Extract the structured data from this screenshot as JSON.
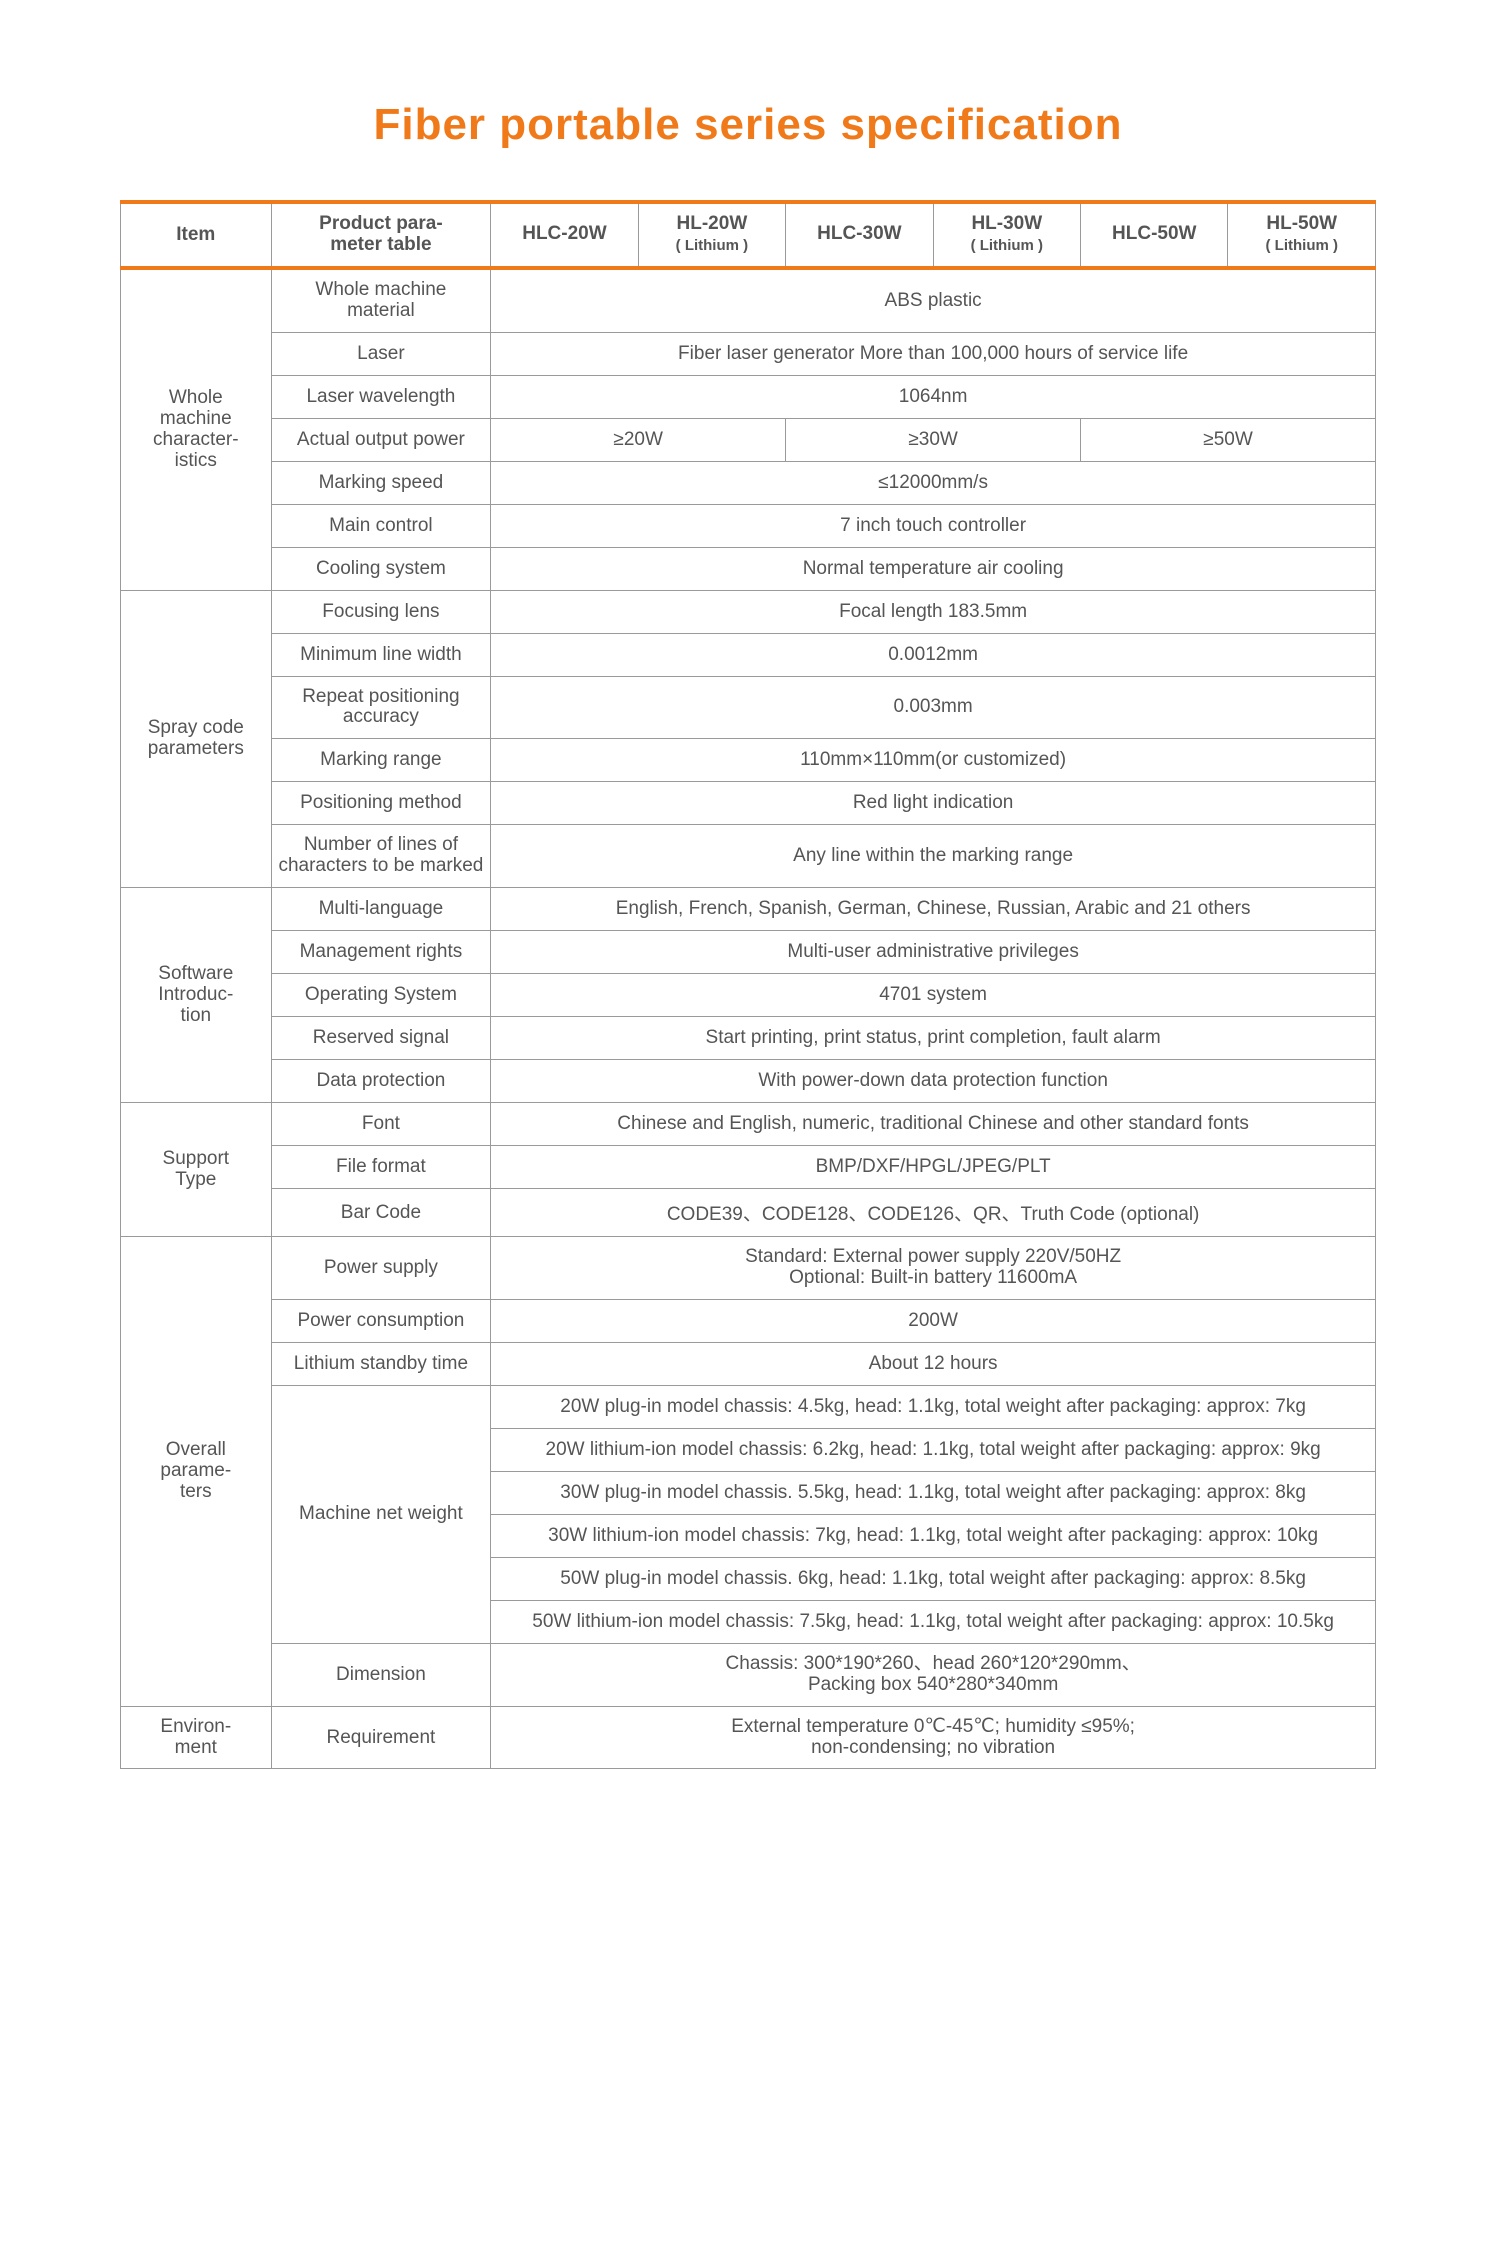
{
  "title": "Fiber portable  series specification",
  "headers": {
    "item": "Item",
    "param": "Product para-\nmeter table",
    "models": [
      {
        "name": "HLC-20W",
        "sub": ""
      },
      {
        "name": "HL-20W",
        "sub": "( Lithium )"
      },
      {
        "name": "HLC-30W",
        "sub": ""
      },
      {
        "name": "HL-30W",
        "sub": "( Lithium )"
      },
      {
        "name": "HLC-50W",
        "sub": ""
      },
      {
        "name": "HL-50W",
        "sub": "( Lithium )"
      }
    ]
  },
  "sections": {
    "whole": {
      "label": "Whole\nmachine\ncharacter-\nistics",
      "rows": [
        {
          "param": "Whole machine\nmaterial",
          "value": "ABS plastic"
        },
        {
          "param": "Laser",
          "value": "Fiber laser generator More than 100,000 hours of service life"
        },
        {
          "param": "Laser wavelength",
          "value": "1064nm"
        },
        {
          "param": "Actual output power",
          "values3": [
            "≥20W",
            "≥30W",
            "≥50W"
          ]
        },
        {
          "param": "Marking speed",
          "value": "≤12000mm/s"
        },
        {
          "param": "Main control",
          "value": "7 inch touch controller"
        },
        {
          "param": "Cooling system",
          "value": "Normal temperature air cooling"
        }
      ]
    },
    "spray": {
      "label": "Spray code\nparameters",
      "rows": [
        {
          "param": "Focusing lens",
          "value": "Focal length 183.5mm"
        },
        {
          "param": "Minimum line width",
          "value": "0.0012mm"
        },
        {
          "param": "Repeat positioning\naccuracy",
          "value": "0.003mm"
        },
        {
          "param": "Marking range",
          "value": "110mm×110mm(or customized)"
        },
        {
          "param": "Positioning method",
          "value": "Red light indication"
        },
        {
          "param": "Number of lines of\ncharacters to be marked",
          "value": "Any line within the marking range"
        }
      ]
    },
    "software": {
      "label": "Software\nIntroduc-\ntion",
      "rows": [
        {
          "param": "Multi-language",
          "value": "English, French, Spanish, German, Chinese, Russian, Arabic and 21 others"
        },
        {
          "param": "Management rights",
          "value": "Multi-user administrative privileges"
        },
        {
          "param": "Operating System",
          "value": "4701 system"
        },
        {
          "param": "Reserved signal",
          "value": "Start printing, print status, print completion, fault alarm"
        },
        {
          "param": "Data protection",
          "value": "With power-down data protection function"
        }
      ]
    },
    "support": {
      "label": "Support\nType",
      "rows": [
        {
          "param": "Font",
          "value": "Chinese and English, numeric, traditional Chinese and other standard fonts"
        },
        {
          "param": "File format",
          "value": "BMP/DXF/HPGL/JPEG/PLT"
        },
        {
          "param": "Bar Code",
          "value": "CODE39、CODE128、CODE126、QR、Truth Code (optional)"
        }
      ]
    },
    "overall": {
      "label": "Overall\nparame-\nters",
      "rows": [
        {
          "param": "Power supply",
          "value": "Standard: External power supply 220V/50HZ\nOptional: Built-in battery 11600mA"
        },
        {
          "param": "Power consumption",
          "value": "200W"
        },
        {
          "param": "Lithium standby time",
          "value": "About 12 hours"
        },
        {
          "param": "Machine net weight",
          "weights": [
            "20W plug-in model chassis: 4.5kg, head: 1.1kg, total weight after packaging: approx: 7kg",
            "20W lithium-ion model chassis:  6.2kg, head: 1.1kg, total weight after packaging: approx: 9kg",
            "30W plug-in model chassis. 5.5kg, head: 1.1kg, total weight after packaging: approx: 8kg",
            "30W lithium-ion model chassis:  7kg, head: 1.1kg, total weight after packaging: approx: 10kg",
            "50W plug-in model chassis. 6kg, head: 1.1kg, total weight after packaging: approx: 8.5kg",
            "50W lithium-ion model chassis:  7.5kg, head: 1.1kg, total weight after packaging: approx: 10.5kg"
          ]
        },
        {
          "param": "Dimension",
          "value": "Chassis: 300*190*260、head 260*120*290mm、\nPacking box 540*280*340mm"
        }
      ]
    },
    "environ": {
      "label": "Environ-\nment",
      "rows": [
        {
          "param": "Requirement",
          "value": "External temperature 0℃-45℃; humidity ≤95%;\nnon-condensing; no vibration"
        }
      ]
    }
  }
}
